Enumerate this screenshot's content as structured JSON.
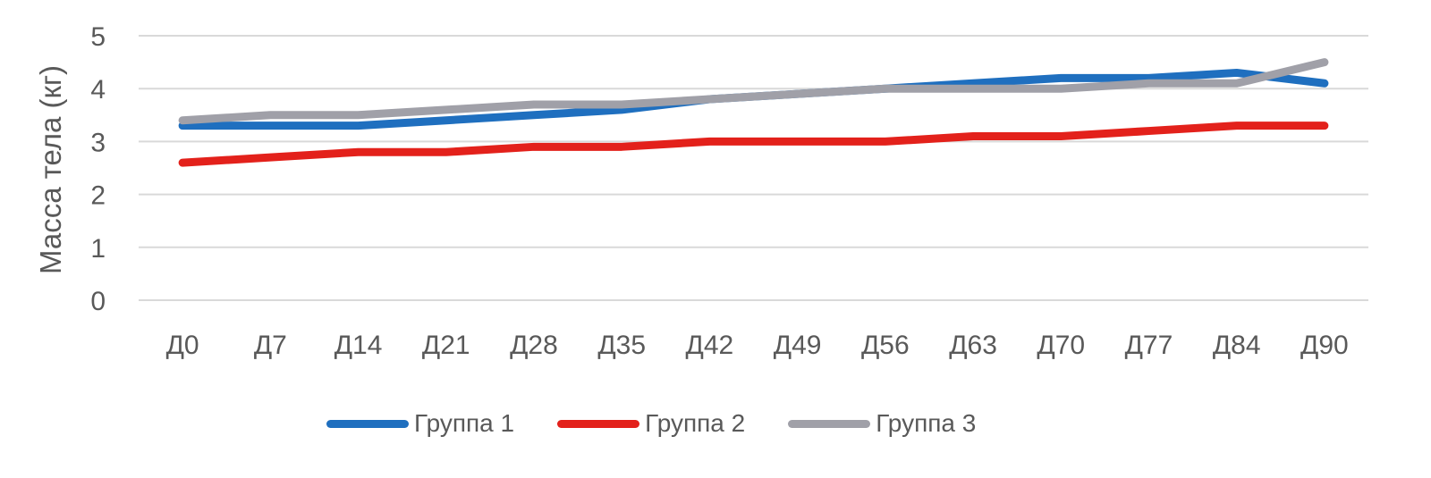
{
  "chart_data": {
    "type": "line",
    "title": "",
    "xlabel": "",
    "ylabel": "Масса тела (кг)",
    "ylim": [
      0,
      5
    ],
    "yticks": [
      0,
      1,
      2,
      3,
      4,
      5
    ],
    "grid": true,
    "legend_position": "bottom",
    "categories": [
      "Д0",
      "Д7",
      "Д14",
      "Д21",
      "Д28",
      "Д35",
      "Д42",
      "Д49",
      "Д56",
      "Д63",
      "Д70",
      "Д77",
      "Д84",
      "Д90"
    ],
    "series": [
      {
        "name": "Группа 1",
        "color": "#1F6FBF",
        "values": [
          3.3,
          3.3,
          3.3,
          3.4,
          3.5,
          3.6,
          3.8,
          3.9,
          4.0,
          4.1,
          4.2,
          4.2,
          4.3,
          4.1
        ]
      },
      {
        "name": "Группа 2",
        "color": "#E3211B",
        "values": [
          2.6,
          2.7,
          2.8,
          2.8,
          2.9,
          2.9,
          3.0,
          3.0,
          3.0,
          3.1,
          3.1,
          3.2,
          3.3,
          3.3
        ]
      },
      {
        "name": "Группа 3",
        "color": "#A0A0A8",
        "values": [
          3.4,
          3.5,
          3.5,
          3.6,
          3.7,
          3.7,
          3.8,
          3.9,
          4.0,
          4.0,
          4.0,
          4.1,
          4.1,
          4.5
        ]
      }
    ]
  },
  "colors": {
    "gridline": "#D9D9D9",
    "text": "#595959",
    "background": "#FFFFFF"
  }
}
